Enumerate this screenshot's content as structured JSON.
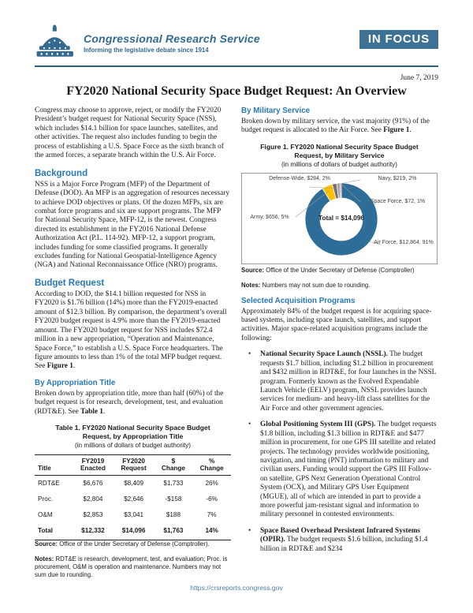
{
  "header": {
    "org": "Congressional Research Service",
    "tagline": "Informing the legislative debate since 1914",
    "badge": "IN FOCUS"
  },
  "date": "June 7, 2019",
  "title": "FY2020 National Security Space Budget Request: An Overview",
  "intro": "Congress may choose to approve, reject, or modify the FY2020 President’s budget request for National Security Space (NSS), which includes $14.1 billion for space launches, satellites, and other activities. The request also includes funding to begin the process of establishing a U.S. Space Force as the sixth branch of the armed forces, a separate branch within the U.S. Air Force.",
  "sections": {
    "background": {
      "heading": "Background",
      "text": "NSS is a Major Force Program (MFP) of the Department of Defense (DOD). An MFP is an aggregation of resources necessary to achieve DOD objectives or plans. Of the dozen MFPs, six are combat force programs and six are support programs. The MFP for National Security Space, MFP-12, is the newest. Congress directed its establishment in the FY2016 National Defense Authorization Act (P.L. 114-92). MFP-12, a support program, includes funding for some classified programs. It generally excludes funding for National Geospatial-Intelligence Agency (NGA) and National Reconnaissance Office (NRO) programs."
    },
    "budget_request": {
      "heading": "Budget Request",
      "text": "According to DOD, the $14.1 billion requested for NSS in FY2020 is $1.76 billion (14%) more than the FY2019-enacted amount of $12.3 billion. By comparison, the department’s overall FY2020 budget request is 4.9% more than the FY2019-enacted amount. The FY2020 budget request for NSS includes $72.4 million in a new appropriation, “Operation and Maintenance, Space Force,” to establish a U.S. Space Force headquarters. The figure amounts to less than 1% of the total MFP budget request. See ",
      "ref": "Figure 1",
      "suffix": "."
    },
    "by_appropriation": {
      "heading": "By Appropriation Title",
      "text": "Broken down by appropriation title, more than half (60%) of the budget request is for research, development, test, and evaluation (RDT&E). See ",
      "ref": "Table 1",
      "suffix": "."
    },
    "by_military": {
      "heading": "By Military Service",
      "text": "Broken down by military service, the vast majority (91%) of the budget request is allocated to the Air Force. See ",
      "ref": "Figure 1",
      "suffix": "."
    },
    "programs": {
      "heading": "Selected Acquisition Programs",
      "intro": "Approximately 84% of the budget request is for acquiring space-based systems, including space launch, satellites, and support activities. Major space-related acquisition programs include the following:",
      "items": [
        {
          "name": "National Security Space Launch (NSSL).",
          "text": " The budget requests $1.7 billion, including $1.2 billion in procurement and $432 million in RDT&E, for four launches in the NSSL program. Formerly known as the Evolved Expendable Launch Vehicle (EELV) program, NSSL provides launch services for medium- and heavy-lift class satellites for the Air Force and other government agencies."
        },
        {
          "name": "Global Positioning System III (GPS).",
          "text": " The budget requests $1.8 billion, including $1.3 billion in RDT&E and $477 million in procurement, for one GPS III satellite and related projects. The technology provides worldwide positioning, navigation, and timing (PNT) information to military and civilian users. Funding would support the GPS III Follow-on satellite, GPS Next Generation Operational Control System (OCX), and Military GPS User Equipment (MGUE), all of which are intended in part to provide a more powerful jam-resistant signal and information to military personnel in contested environments."
        },
        {
          "name": "Space Based Overhead Persistent Infrared Systems (OPIR).",
          "text": " The budget requests $1.6 billion, including $1.4 billion in RDT&E and $234"
        }
      ]
    }
  },
  "table": {
    "label": "Table 1.",
    "title": "FY2020 National Security Space Budget Request, by Appropriation Title",
    "subtitle": "(in millions of dollars of budget authority)",
    "headers": [
      {
        "top": "",
        "bottom": "Title"
      },
      {
        "top": "FY2019",
        "bottom": "Enacted"
      },
      {
        "top": "FY2020",
        "bottom": "Request"
      },
      {
        "top": "$",
        "bottom": "Change"
      },
      {
        "top": "%",
        "bottom": "Change"
      }
    ],
    "rows": [
      [
        "RDT&E",
        "$6,676",
        "$8,409",
        "$1,733",
        "26%"
      ],
      [
        "Proc.",
        "$2,804",
        "$2,646",
        "-$158",
        "-6%"
      ],
      [
        "O&M",
        "$2,853",
        "$3,041",
        "$188",
        "7%"
      ],
      [
        "Total",
        "$12,332",
        "$14,096",
        "$1,763",
        "14%"
      ]
    ],
    "source_label": "Source:",
    "source": "Office of the Under Secretary of Defense (Comptroller).",
    "notes_label": "Notes:",
    "notes": "RDT&E is research, development, test, and evaluation; Proc. is procurement, O&M is operation and maintenance. Numbers may not sum due to rounding."
  },
  "figure": {
    "label": "Figure 1.",
    "title": "FY2020 National Security Space Budget Request, by Military Service",
    "subtitle": "(in millions of dollars of budget authority)",
    "source_label": "Source:",
    "source": "Office of the Under Secretary of Defense (Comptroller)",
    "notes_label": "Notes:",
    "notes": "Numbers may not sum due to rounding."
  },
  "chart_data": {
    "type": "pie",
    "subtype": "donut",
    "title": "Figure 1. FY2020 National Security Space Budget Request, by Military Service",
    "units": "millions of dollars of budget authority",
    "center_label": "Total = $14,096",
    "total": 14096,
    "legend_position": "outside-callout-labels",
    "slices": [
      {
        "name": "Air Force",
        "value": 12864,
        "pct": "91%",
        "label": "Air Force, $12,864, 91%",
        "color": "#2E6D98"
      },
      {
        "name": "Army",
        "value": 656,
        "pct": "5%",
        "label": "Army, $656, 5%",
        "color": "#FFC000"
      },
      {
        "name": "Defense-Wide",
        "value": 284,
        "pct": "2%",
        "label": "Defense-Wide, $284, 2%",
        "color": "#737070"
      },
      {
        "name": "Navy",
        "value": 219,
        "pct": "2%",
        "label": "Navy, $219, 2%",
        "color": "#A8A4A4"
      },
      {
        "name": "Space Force",
        "value": 72,
        "pct": "1%",
        "label": "Space Force, $72, 1%",
        "color": "#C1502E"
      }
    ]
  },
  "footer": {
    "url": "https://crsreports.congress.gov"
  }
}
